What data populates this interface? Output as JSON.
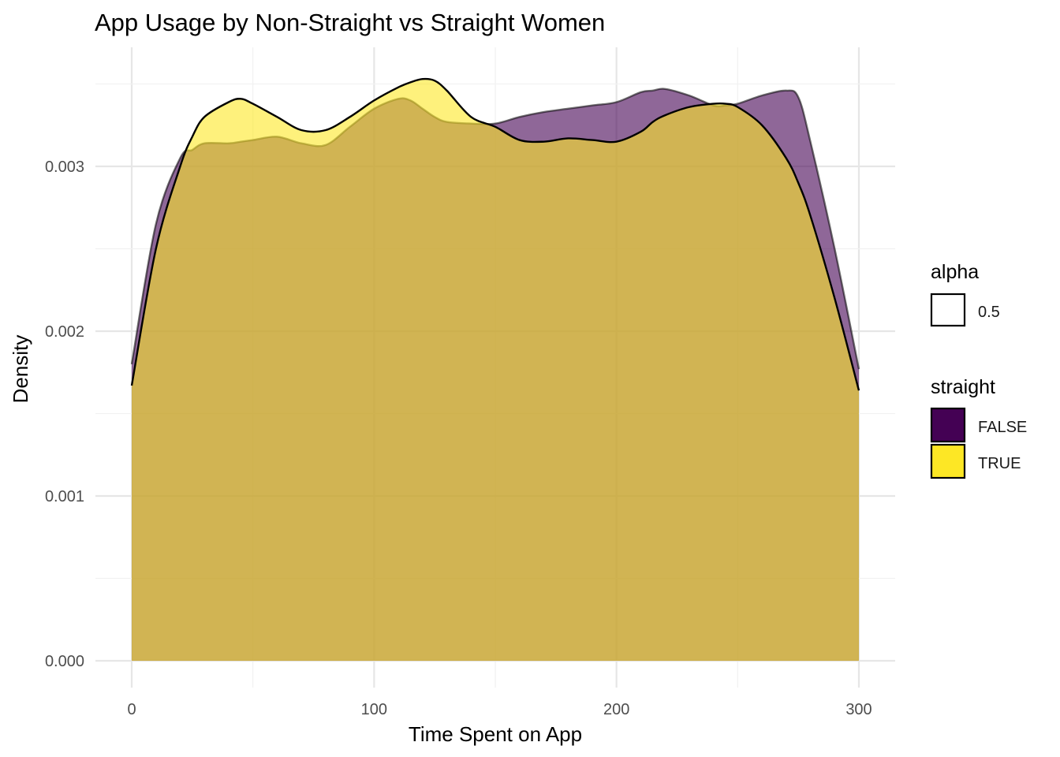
{
  "chart_data": {
    "type": "area",
    "title": "App Usage by Non-Straight vs Straight Women",
    "xlabel": "Time Spent on App",
    "ylabel": "Density",
    "xlim": [
      0,
      300
    ],
    "ylim": [
      0,
      0.0035
    ],
    "x_ticks": [
      0,
      100,
      200,
      300
    ],
    "x_tick_labels": [
      "0",
      "100",
      "200",
      "300"
    ],
    "y_ticks": [
      0,
      0.001,
      0.002,
      0.003
    ],
    "y_tick_labels": [
      "0.000",
      "0.001",
      "0.002",
      "0.003"
    ],
    "grid": true,
    "legend_position": "right",
    "legends": [
      {
        "title": "alpha",
        "items": [
          {
            "label": "0.5",
            "color": "#ffffff"
          }
        ]
      },
      {
        "title": "straight",
        "items": [
          {
            "label": "FALSE",
            "color": "#440154"
          },
          {
            "label": "TRUE",
            "color": "#FDE725"
          }
        ]
      }
    ],
    "fill_alpha": 0.6,
    "x": [
      0,
      10,
      20,
      25,
      30,
      40,
      45,
      50,
      60,
      70,
      80,
      90,
      100,
      110,
      115,
      120,
      125,
      130,
      140,
      150,
      160,
      170,
      180,
      190,
      200,
      210,
      215,
      220,
      230,
      240,
      245,
      250,
      260,
      270,
      275,
      280,
      290,
      300
    ],
    "series": [
      {
        "name": "FALSE",
        "color": "#440154",
        "values": [
          0.0018,
          0.00265,
          0.00305,
          0.0031,
          0.00314,
          0.00314,
          0.00315,
          0.00316,
          0.00318,
          0.00314,
          0.00313,
          0.00324,
          0.00335,
          0.00341,
          0.0034,
          0.00335,
          0.0033,
          0.00327,
          0.00326,
          0.00326,
          0.0033,
          0.00333,
          0.00335,
          0.00337,
          0.00339,
          0.00345,
          0.00346,
          0.00347,
          0.00343,
          0.00337,
          0.00337,
          0.00338,
          0.00343,
          0.00346,
          0.00342,
          0.00315,
          0.0025,
          0.00177
        ]
      },
      {
        "name": "TRUE",
        "color": "#FDE725",
        "values": [
          0.00167,
          0.0025,
          0.003,
          0.00318,
          0.0033,
          0.00339,
          0.00341,
          0.00338,
          0.0033,
          0.00322,
          0.00322,
          0.0033,
          0.0034,
          0.00348,
          0.00351,
          0.00353,
          0.00352,
          0.00346,
          0.0033,
          0.00324,
          0.00316,
          0.00315,
          0.00317,
          0.00316,
          0.00315,
          0.00321,
          0.00327,
          0.00331,
          0.00336,
          0.00338,
          0.00338,
          0.00336,
          0.00325,
          0.00305,
          0.0029,
          0.0027,
          0.0022,
          0.00164
        ]
      }
    ]
  }
}
